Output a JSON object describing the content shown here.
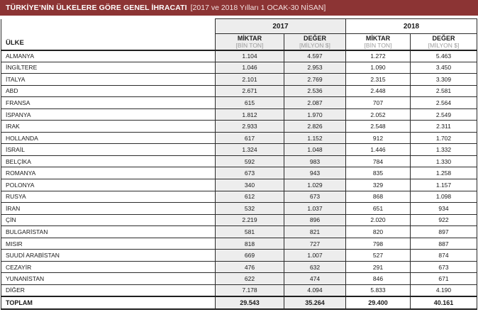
{
  "title": {
    "main": "TÜRKİYE’NİN ÜLKELERE GÖRE GENEL İHRACATI",
    "period": "[2017 ve 2018 Yılları 1 OCAK-30 NİSAN]"
  },
  "header": {
    "ulke": "ÜLKE",
    "year_2017": "2017",
    "year_2018": "2018",
    "miktar": "MİKTAR",
    "bin_ton": "[BİN TON]",
    "deger": "DEĞER",
    "milyon_usd": "[MİLYON $]"
  },
  "colors": {
    "accent_bar": "#8c3434",
    "shaded_column": "#ededed",
    "unit_text": "#9c9c9c",
    "border": "#2b2b2b"
  },
  "chart_data": {
    "type": "table",
    "title": "TÜRKİYE’NİN ÜLKELERE GÖRE GENEL İHRACATI",
    "subtitle": "[2017 ve 2018 Yılları 1 OCAK-30 NİSAN]",
    "column_groups": [
      "2017",
      "2018"
    ],
    "columns": [
      "ÜLKE",
      "2017 MİKTAR (BİN TON)",
      "2017 DEĞER (MİLYON $)",
      "2018 MİKTAR (BİN TON)",
      "2018 DEĞER (MİLYON $)"
    ],
    "rows": [
      [
        "ALMANYA",
        "1.104",
        "4.597",
        "1.272",
        "5.463"
      ],
      [
        "İNGİLTERE",
        "1.046",
        "2.953",
        "1.090",
        "3.450"
      ],
      [
        "İTALYA",
        "2.101",
        "2.769",
        "2.315",
        "3.309"
      ],
      [
        "ABD",
        "2.671",
        "2.536",
        "2.448",
        "2.581"
      ],
      [
        "FRANSA",
        "615",
        "2.087",
        "707",
        "2.564"
      ],
      [
        "İSPANYA",
        "1.812",
        "1.970",
        "2.052",
        "2.549"
      ],
      [
        "IRAK",
        "2.933",
        "2.826",
        "2.548",
        "2.311"
      ],
      [
        "HOLLANDA",
        "617",
        "1.152",
        "912",
        "1.702"
      ],
      [
        "İSRAİL",
        "1.324",
        "1.048",
        "1.446",
        "1.332"
      ],
      [
        "BELÇİKA",
        "592",
        "983",
        "784",
        "1.330"
      ],
      [
        "ROMANYA",
        "673",
        "943",
        "835",
        "1.258"
      ],
      [
        "POLONYA",
        "340",
        "1.029",
        "329",
        "1.157"
      ],
      [
        "RUSYA",
        "612",
        "673",
        "868",
        "1.098"
      ],
      [
        "İRAN",
        "532",
        "1.037",
        "651",
        "934"
      ],
      [
        "ÇİN",
        "2.219",
        "896",
        "2.020",
        "922"
      ],
      [
        "BULGARİSTAN",
        "581",
        "821",
        "820",
        "897"
      ],
      [
        "MISIR",
        "818",
        "727",
        "798",
        "887"
      ],
      [
        "SUUDİ ARABİSTAN",
        "669",
        "1.007",
        "527",
        "874"
      ],
      [
        "CEZAYİR",
        "476",
        "632",
        "291",
        "673"
      ],
      [
        "YUNANİSTAN",
        "622",
        "474",
        "846",
        "671"
      ],
      [
        "DİĞER",
        "7.178",
        "4.094",
        "5.833",
        "4.190"
      ]
    ],
    "total_row": [
      "TOPLAM",
      "29.543",
      "35.264",
      "29.400",
      "40.161"
    ]
  }
}
